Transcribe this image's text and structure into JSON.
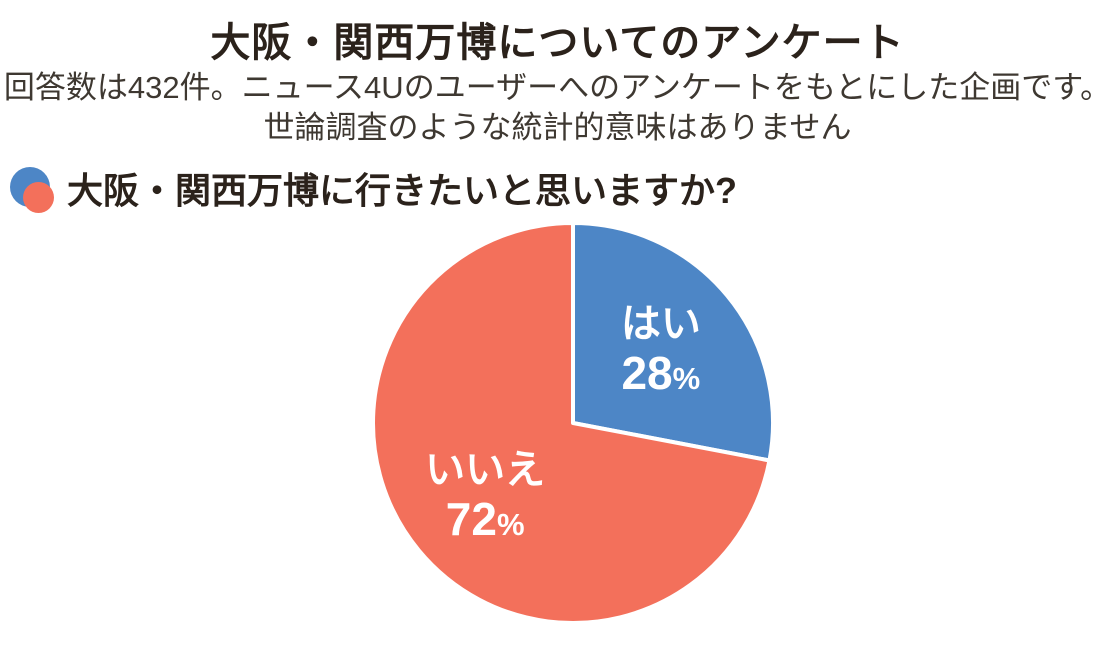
{
  "page": {
    "title": "大阪・関西万博についてのアンケート",
    "subtitle_line1": "回答数は432件。ニュース4Uのユーザーへのアンケートをもとにした企画です。",
    "subtitle_line2": "世論調査のような統計的意味はありません",
    "question": "大阪・関西万博に行きたいと思いますか?"
  },
  "icons": {
    "question_bullet": "overlapping-circles-icon"
  },
  "colors": {
    "yes_blue": "#4D86C6",
    "no_red": "#F3705B",
    "title_text": "#2B221B",
    "subtitle_text": "#3E3831",
    "slice_divider": "#FFFFFF",
    "slice_label_text": "#FFFFFF",
    "background": "#FFFFFF"
  },
  "chart_data": {
    "type": "pie",
    "title": "大阪・関西万博に行きたいと思いますか?",
    "categories": [
      "はい",
      "いいえ"
    ],
    "values": [
      28,
      72
    ],
    "unit": "%",
    "slices": [
      {
        "label": "はい",
        "value": 28,
        "display": "28%",
        "color": "#4D86C6"
      },
      {
        "label": "いいえ",
        "value": 72,
        "display": "72%",
        "color": "#F3705B"
      }
    ],
    "total_responses": 432,
    "start_angle_deg": 0,
    "direction": "clockwise",
    "labels_position": "inside",
    "legend": "none"
  }
}
